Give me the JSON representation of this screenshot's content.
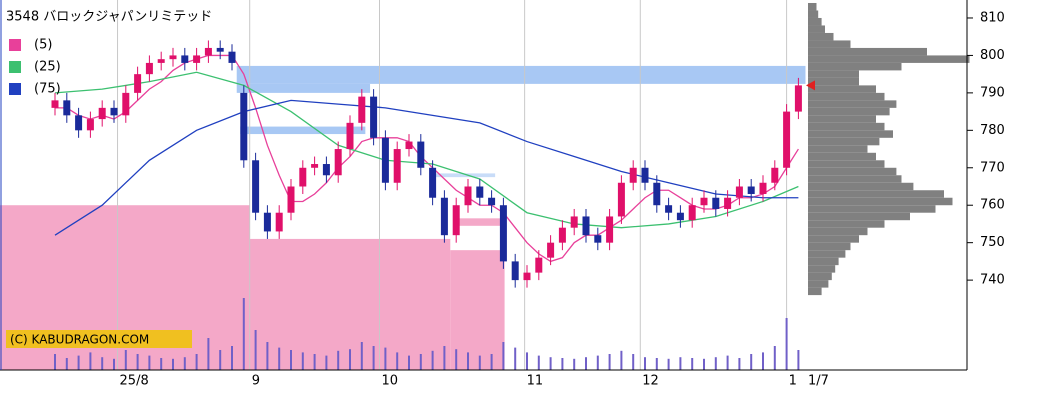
{
  "chart_data": {
    "type": "candlestick",
    "title": "3548 バロックジャパンリミテッド",
    "watermark": "(C) KABUDRAGON.COM",
    "last_date": "1/7",
    "ylim": [
      716,
      814.8
    ],
    "yticks": [
      740,
      750,
      760,
      770,
      780,
      790,
      800,
      810
    ],
    "xticks": [
      {
        "value": 5.3,
        "label": "25/8"
      },
      {
        "value": 16.5,
        "label": "9"
      },
      {
        "value": 27.5,
        "label": "10"
      },
      {
        "value": 39.8,
        "label": "11"
      },
      {
        "value": 49.6,
        "label": "12"
      },
      {
        "value": 62.0,
        "label": "1"
      }
    ],
    "grid": true,
    "up_color": "#e0106a",
    "down_color": "#1a2a9a",
    "candles": {
      "open": [
        786,
        788,
        784,
        780,
        783,
        786,
        784,
        790,
        795,
        798,
        799,
        800,
        798,
        800,
        802,
        801,
        790,
        772,
        758,
        753,
        758,
        765,
        770,
        771,
        768,
        775,
        782,
        789,
        778,
        766,
        775,
        777,
        770,
        762,
        752,
        760,
        765,
        762,
        760,
        745,
        740,
        742,
        746,
        750,
        754,
        757,
        752,
        750,
        757,
        766,
        770,
        766,
        760,
        758,
        756,
        760,
        762,
        759,
        762,
        765,
        763,
        766,
        770,
        785
      ],
      "high": [
        790,
        790,
        786,
        785,
        788,
        788,
        792,
        797,
        800,
        801,
        802,
        802,
        802,
        804,
        804,
        803,
        792,
        774,
        760,
        760,
        767,
        772,
        773,
        773,
        777,
        784,
        791,
        791,
        780,
        777,
        779,
        779,
        772,
        764,
        762,
        767,
        767,
        764,
        762,
        747,
        744,
        748,
        752,
        756,
        759,
        759,
        754,
        759,
        768,
        772,
        772,
        768,
        762,
        760,
        762,
        764,
        764,
        764,
        767,
        767,
        768,
        772,
        787,
        794
      ],
      "low": [
        784,
        782,
        778,
        778,
        781,
        782,
        782,
        788,
        793,
        796,
        797,
        796,
        796,
        798,
        799,
        796,
        770,
        756,
        751,
        751,
        756,
        763,
        768,
        766,
        766,
        773,
        780,
        776,
        764,
        764,
        773,
        768,
        760,
        750,
        750,
        758,
        760,
        758,
        743,
        738,
        738,
        740,
        744,
        748,
        752,
        750,
        748,
        748,
        755,
        764,
        764,
        758,
        756,
        754,
        754,
        758,
        757,
        757,
        760,
        761,
        761,
        764,
        768,
        783
      ],
      "close": [
        788,
        784,
        780,
        783,
        786,
        784,
        790,
        795,
        798,
        799,
        800,
        798,
        800,
        802,
        801,
        798,
        772,
        758,
        753,
        758,
        765,
        770,
        771,
        768,
        775,
        782,
        789,
        778,
        766,
        775,
        777,
        770,
        762,
        752,
        760,
        765,
        762,
        760,
        745,
        740,
        742,
        746,
        750,
        754,
        757,
        752,
        750,
        757,
        766,
        770,
        766,
        760,
        758,
        756,
        760,
        762,
        759,
        762,
        765,
        763,
        766,
        770,
        785,
        792
      ]
    },
    "series": [
      {
        "name": "(5)",
        "color": "#e8409a",
        "x": [
          0,
          1,
          2,
          3,
          4,
          5,
          6,
          7,
          8,
          9,
          10,
          11,
          12,
          13,
          14,
          15,
          16,
          17,
          18,
          19,
          20,
          21,
          22,
          23,
          24,
          25,
          26,
          27,
          28,
          29,
          30,
          31,
          32,
          33,
          34,
          35,
          36,
          37,
          38,
          39,
          40,
          41,
          42,
          43,
          44,
          45,
          46,
          47,
          48,
          49,
          50,
          51,
          52,
          53,
          54,
          55,
          56,
          57,
          58,
          59,
          60,
          61,
          62,
          63
        ],
        "values": [
          786,
          786,
          784,
          783,
          784,
          783,
          785,
          788,
          791,
          793,
          796,
          798,
          799,
          800,
          800,
          800,
          795,
          786,
          776,
          768,
          761,
          761,
          763,
          766,
          770,
          773,
          777,
          778,
          778,
          778,
          777,
          773,
          770,
          767,
          764,
          762,
          760,
          760,
          758,
          754,
          750,
          747,
          745,
          746,
          750,
          752,
          752,
          754,
          756,
          759,
          762,
          764,
          764,
          762,
          760,
          759,
          759,
          760,
          762,
          762,
          763,
          765,
          770,
          775
        ]
      },
      {
        "name": "(25)",
        "color": "#3cc070",
        "x": [
          0,
          4,
          8,
          12,
          16,
          20,
          24,
          28,
          32,
          36,
          40,
          44,
          48,
          52,
          56,
          60,
          63
        ],
        "values": [
          790,
          791,
          793,
          795.5,
          792,
          785,
          776,
          772,
          771,
          767,
          758,
          755,
          754,
          755,
          757,
          761,
          765
        ]
      },
      {
        "name": "(75)",
        "color": "#2040c0",
        "x": [
          0,
          4,
          8,
          12,
          16,
          20,
          24,
          28,
          32,
          36,
          40,
          44,
          48,
          52,
          56,
          60,
          63
        ],
        "values": [
          752,
          760,
          772,
          780,
          785,
          788,
          787,
          786,
          784,
          782,
          777,
          773,
          769,
          766,
          763,
          762,
          762
        ]
      }
    ],
    "volume": {
      "color": "#7060c8",
      "lim": [
        0,
        100
      ],
      "values": [
        20,
        15,
        18,
        22,
        16,
        14,
        25,
        20,
        18,
        15,
        14,
        16,
        20,
        40,
        25,
        30,
        90,
        50,
        35,
        28,
        25,
        22,
        20,
        18,
        24,
        26,
        35,
        30,
        28,
        22,
        18,
        20,
        24,
        30,
        26,
        22,
        18,
        20,
        35,
        28,
        22,
        18,
        16,
        15,
        14,
        16,
        18,
        20,
        24,
        20,
        16,
        15,
        14,
        16,
        15,
        14,
        16,
        18,
        15,
        20,
        22,
        30,
        65,
        25
      ]
    },
    "zones": [
      {
        "x": [
          -4.7,
          16.5
        ],
        "y": [
          716,
          760
        ],
        "color": "#f4a8c8"
      },
      {
        "x": [
          16.5,
          33.5
        ],
        "y": [
          716,
          751
        ],
        "color": "#f4a8c8"
      },
      {
        "x": [
          33.5,
          38.1
        ],
        "y": [
          716,
          748
        ],
        "color": "#f4a8c8"
      },
      {
        "x": [
          34.0,
          37.9
        ],
        "y": [
          754.5,
          756.5
        ],
        "color": "#f4a8c8"
      },
      {
        "x": [
          15.4,
          63.6
        ],
        "y": [
          792.4,
          797.2
        ],
        "color": "#a8c8f4"
      },
      {
        "x": [
          15.4,
          26.7
        ],
        "y": [
          790,
          792.4
        ],
        "color": "#a8c8f4"
      },
      {
        "x": [
          15.7,
          26.3
        ],
        "y": [
          779,
          781
        ],
        "color": "#a8c8f4"
      },
      {
        "x": [
          31.8,
          37.3
        ],
        "y": [
          767.5,
          768.5
        ],
        "color": "#c8dcf8"
      }
    ],
    "profile": {
      "color": "#808080",
      "lim": [
        0,
        100
      ],
      "prices": [
        737,
        739,
        741,
        743,
        745,
        747,
        749,
        751,
        753,
        755,
        757,
        759,
        761,
        763,
        765,
        767,
        769,
        771,
        773,
        775,
        777,
        779,
        781,
        783,
        785,
        787,
        789,
        791,
        793,
        795,
        797,
        799,
        801,
        803,
        805,
        807,
        809,
        811,
        813
      ],
      "values": [
        8,
        12,
        14,
        16,
        18,
        22,
        25,
        30,
        35,
        45,
        60,
        75,
        85,
        80,
        62,
        55,
        52,
        45,
        40,
        35,
        42,
        50,
        45,
        40,
        48,
        52,
        45,
        40,
        30,
        30,
        55,
        95,
        70,
        25,
        15,
        10,
        8,
        6,
        5
      ]
    }
  }
}
